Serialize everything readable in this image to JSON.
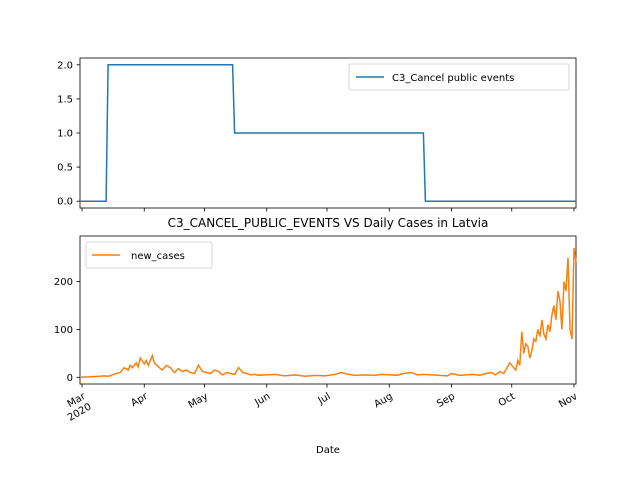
{
  "chart_data": [
    {
      "type": "line",
      "title": "",
      "xlabel": "",
      "ylabel": "",
      "ylim": [
        -0.1,
        2.1
      ],
      "yticks": [
        "0.0",
        "0.5",
        "1.0",
        "1.5",
        "2.0"
      ],
      "legend_position": "top-right",
      "grid": false,
      "series": [
        {
          "name": "C3_Cancel public events",
          "color": "#1f77b4",
          "x": [
            "2020-02-29",
            "2020-03-13",
            "2020-03-14",
            "2020-05-15",
            "2020-05-16",
            "2020-08-18",
            "2020-08-19",
            "2020-11-02"
          ],
          "y": [
            0,
            0,
            2,
            2,
            1,
            1,
            0,
            0
          ]
        }
      ]
    },
    {
      "type": "line",
      "title": "C3_CANCEL_PUBLIC_EVENTS VS Daily Cases in Latvia",
      "xlabel": "Date",
      "ylabel": "",
      "ylim": [
        -14,
        295
      ],
      "yticks": [
        "0",
        "100",
        "200"
      ],
      "x_tick_labels": [
        "Mar\n2020",
        "Apr",
        "May",
        "Jun",
        "Jul",
        "Aug",
        "Sep",
        "Oct",
        "Nov"
      ],
      "legend_position": "top-left",
      "grid": false,
      "series": [
        {
          "name": "new_cases",
          "color": "#ff7f0e",
          "x": [
            "2020-02-29",
            "2020-03-05",
            "2020-03-10",
            "2020-03-12",
            "2020-03-14",
            "2020-03-16",
            "2020-03-18",
            "2020-03-20",
            "2020-03-22",
            "2020-03-24",
            "2020-03-25",
            "2020-03-26",
            "2020-03-28",
            "2020-03-29",
            "2020-03-30",
            "2020-04-01",
            "2020-04-02",
            "2020-04-03",
            "2020-04-05",
            "2020-04-06",
            "2020-04-08",
            "2020-04-10",
            "2020-04-12",
            "2020-04-14",
            "2020-04-16",
            "2020-04-18",
            "2020-04-20",
            "2020-04-22",
            "2020-04-24",
            "2020-04-26",
            "2020-04-28",
            "2020-04-30",
            "2020-05-02",
            "2020-05-04",
            "2020-05-06",
            "2020-05-08",
            "2020-05-10",
            "2020-05-12",
            "2020-05-14",
            "2020-05-16",
            "2020-05-18",
            "2020-05-20",
            "2020-05-22",
            "2020-05-24",
            "2020-05-26",
            "2020-05-28",
            "2020-06-01",
            "2020-06-05",
            "2020-06-10",
            "2020-06-15",
            "2020-06-20",
            "2020-06-25",
            "2020-06-30",
            "2020-07-05",
            "2020-07-08",
            "2020-07-10",
            "2020-07-12",
            "2020-07-15",
            "2020-07-20",
            "2020-07-25",
            "2020-07-28",
            "2020-08-01",
            "2020-08-05",
            "2020-08-08",
            "2020-08-12",
            "2020-08-15",
            "2020-08-18",
            "2020-08-22",
            "2020-08-26",
            "2020-08-30",
            "2020-09-01",
            "2020-09-03",
            "2020-09-05",
            "2020-09-08",
            "2020-09-12",
            "2020-09-15",
            "2020-09-18",
            "2020-09-21",
            "2020-09-23",
            "2020-09-25",
            "2020-09-27",
            "2020-09-28",
            "2020-09-30",
            "2020-10-01",
            "2020-10-02",
            "2020-10-03",
            "2020-10-04",
            "2020-10-05",
            "2020-10-06",
            "2020-10-07",
            "2020-10-08",
            "2020-10-09",
            "2020-10-10",
            "2020-10-11",
            "2020-10-12",
            "2020-10-13",
            "2020-10-14",
            "2020-10-15",
            "2020-10-16",
            "2020-10-17",
            "2020-10-18",
            "2020-10-19",
            "2020-10-20",
            "2020-10-21",
            "2020-10-22",
            "2020-10-23",
            "2020-10-24",
            "2020-10-25",
            "2020-10-26",
            "2020-10-27",
            "2020-10-28",
            "2020-10-29",
            "2020-10-30",
            "2020-10-31",
            "2020-11-01",
            "2020-11-02"
          ],
          "y": [
            0,
            1,
            2,
            3,
            2,
            5,
            8,
            10,
            20,
            15,
            25,
            20,
            30,
            22,
            40,
            28,
            35,
            25,
            45,
            30,
            22,
            15,
            25,
            20,
            10,
            18,
            12,
            15,
            10,
            8,
            25,
            12,
            10,
            8,
            15,
            12,
            5,
            10,
            8,
            6,
            20,
            10,
            8,
            5,
            6,
            4,
            5,
            6,
            3,
            5,
            2,
            4,
            3,
            6,
            10,
            8,
            6,
            4,
            5,
            4,
            6,
            5,
            4,
            8,
            10,
            5,
            6,
            5,
            4,
            3,
            8,
            6,
            4,
            5,
            6,
            4,
            8,
            10,
            5,
            12,
            8,
            15,
            30,
            25,
            20,
            15,
            35,
            25,
            95,
            50,
            70,
            65,
            40,
            55,
            80,
            75,
            100,
            85,
            120,
            90,
            80,
            110,
            95,
            130,
            150,
            120,
            180,
            160,
            100,
            200,
            180,
            250,
            100,
            80,
            270,
            240
          ]
        }
      ]
    }
  ]
}
